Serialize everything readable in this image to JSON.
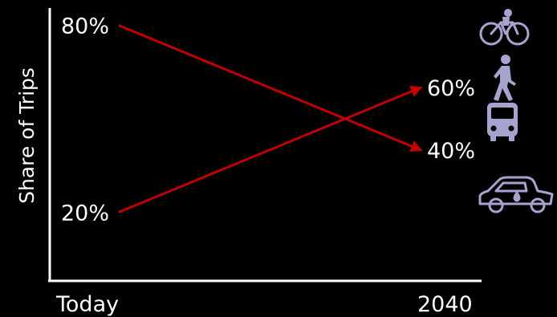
{
  "chart_data": {
    "type": "line",
    "x": [
      "Today",
      "2040"
    ],
    "ylabel": "Share of Trips",
    "ylim": [
      0,
      100
    ],
    "series": [
      {
        "values": [
          80,
          40
        ],
        "value_labels": [
          "80%",
          "40%"
        ],
        "color": "#c00000",
        "icons": [
          "car-icon"
        ]
      },
      {
        "values": [
          20,
          60
        ],
        "value_labels": [
          "20%",
          "60%"
        ],
        "color": "#c00000",
        "icons": [
          "bicycle-icon",
          "pedestrian-icon",
          "bus-icon"
        ]
      }
    ]
  },
  "colors": {
    "background": "#000000",
    "axis": "#ffffff",
    "text": "#ffffff",
    "line": "#c00000",
    "icon": "#a7a3cf"
  }
}
